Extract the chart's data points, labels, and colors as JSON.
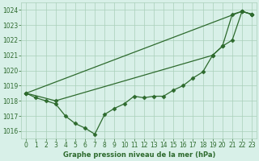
{
  "line1_x": [
    0,
    1,
    2,
    3,
    4,
    5,
    6,
    7,
    8,
    9,
    10,
    11,
    12,
    13,
    14,
    15,
    16,
    17,
    18,
    19,
    20,
    21,
    22,
    23
  ],
  "line1_y": [
    1018.5,
    1018.2,
    1018.0,
    1017.8,
    1017.0,
    1016.5,
    1016.2,
    1015.8,
    1017.1,
    1017.5,
    1017.8,
    1018.3,
    1018.2,
    1018.3,
    1018.3,
    1018.7,
    1019.0,
    1019.5,
    1019.9,
    1021.0,
    1021.6,
    1023.7,
    1023.9,
    1023.7
  ],
  "line2_x": [
    0,
    22,
    23
  ],
  "line2_y": [
    1018.5,
    1023.9,
    1023.7
  ],
  "line3_x": [
    0,
    3,
    19,
    20,
    21,
    22,
    23
  ],
  "line3_y": [
    1018.5,
    1018.0,
    1021.0,
    1021.6,
    1022.0,
    1023.9,
    1023.7
  ],
  "bg_color": "#d8f0e8",
  "grid_color": "#aacfba",
  "line_color": "#2d6a2d",
  "ylabel_values": [
    1016,
    1017,
    1018,
    1019,
    1020,
    1021,
    1022,
    1023,
    1024
  ],
  "xlabel": "Graphe pression niveau de la mer (hPa)",
  "ylim": [
    1015.5,
    1024.5
  ],
  "xlim": [
    -0.5,
    23.5
  ],
  "tick_fontsize": 5.5,
  "xlabel_fontsize": 6.0
}
